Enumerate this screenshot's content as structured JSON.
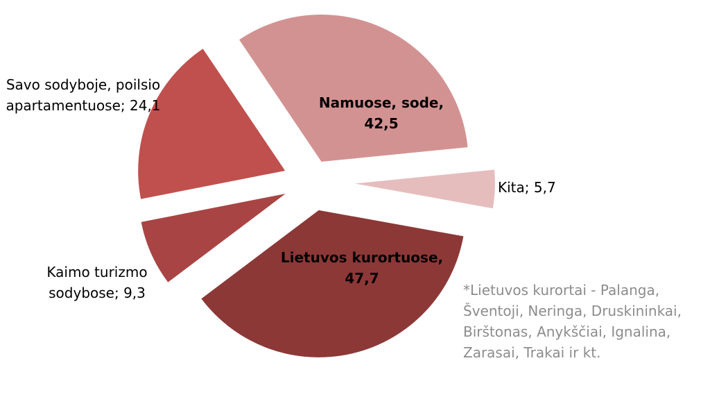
{
  "chart_data": {
    "type": "pie",
    "values": [
      42.5,
      5.7,
      47.7,
      9.3,
      24.1
    ],
    "value_labels": [
      "Namuose, sode, 42,5",
      "Kita; 5,7",
      "Lietuvos kurortuose, 47,7",
      "Kaimo turizmo sodybose; 9,3",
      "Savo sodyboje, poilsio apartamentuose; 24,1"
    ],
    "colors": [
      "#d39292",
      "#e6bdbd",
      "#8c3837",
      "#a84544",
      "#c0504d"
    ],
    "note": "*Lietuvos kurortai - Palanga, Šventoji, Neringa, Druskininkai, Birštonas, Anykščiai, Ignalina, Zarasai, Trakai ir kt."
  }
}
